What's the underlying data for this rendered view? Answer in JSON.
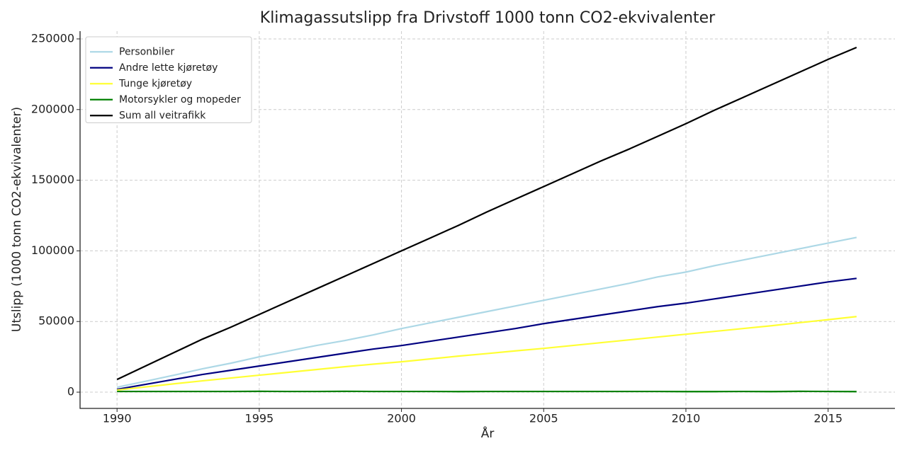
{
  "chart_data": {
    "type": "line",
    "title": "Klimagassutslipp fra Drivstoff 1000 tonn CO2-ekvivalenter",
    "x_label": "År",
    "y_label": "Utslipp (1000 tonn CO2-ekvivalenter)",
    "x": [
      1990,
      1991,
      1992,
      1993,
      1994,
      1995,
      1996,
      1997,
      1998,
      1999,
      2000,
      2001,
      2002,
      2003,
      2004,
      2005,
      2006,
      2007,
      2008,
      2009,
      2010,
      2011,
      2012,
      2013,
      2014,
      2015,
      2016
    ],
    "series": [
      {
        "name": "Personbiler",
        "color": "#add8e6",
        "values": [
          3500,
          7700,
          12000,
          16500,
          20500,
          25000,
          29000,
          33000,
          36500,
          40500,
          45000,
          49000,
          53000,
          57000,
          61000,
          65000,
          69000,
          73000,
          77000,
          81500,
          85000,
          89500,
          93500,
          97500,
          101500,
          105500,
          109500
        ]
      },
      {
        "name": "Andre lette kjøretøy",
        "color": "#000080",
        "values": [
          2000,
          5500,
          9000,
          12500,
          15500,
          18500,
          21500,
          24500,
          27500,
          30500,
          33000,
          36000,
          39000,
          42000,
          45000,
          48500,
          51500,
          54500,
          57500,
          60500,
          63000,
          66000,
          69000,
          72000,
          75000,
          78000,
          80500
        ]
      },
      {
        "name": "Tunge kjøretøy",
        "color": "#ffff33",
        "values": [
          1500,
          3700,
          5900,
          8000,
          10000,
          12000,
          14000,
          16000,
          18000,
          19800,
          21500,
          23500,
          25500,
          27300,
          29200,
          31000,
          33000,
          35000,
          37000,
          39000,
          41000,
          43000,
          45000,
          47000,
          49200,
          51300,
          53500
        ]
      },
      {
        "name": "Motorsykler og mopeder",
        "color": "#008000",
        "values": [
          500,
          500,
          500,
          500,
          500,
          600,
          500,
          500,
          600,
          500,
          500,
          500,
          400,
          500,
          500,
          500,
          500,
          500,
          500,
          500,
          400,
          400,
          500,
          400,
          600,
          500,
          400
        ]
      },
      {
        "name": "Sum all veitrafikk",
        "color": "#000000",
        "values": [
          9000,
          18500,
          28000,
          37500,
          46000,
          55000,
          64000,
          73000,
          82000,
          91000,
          100000,
          109000,
          118000,
          127500,
          136500,
          145500,
          154500,
          163500,
          172000,
          181000,
          190000,
          199500,
          208500,
          217500,
          226500,
          235500,
          244000
        ]
      }
    ],
    "xlim": [
      1988.7,
      2017.35
    ],
    "ylim": [
      -11500,
      255500
    ],
    "xticks": [
      1990,
      1995,
      2000,
      2005,
      2010,
      2015
    ],
    "yticks": [
      0,
      50000,
      100000,
      150000,
      200000,
      250000
    ],
    "grid": true,
    "legend": "upper left"
  }
}
